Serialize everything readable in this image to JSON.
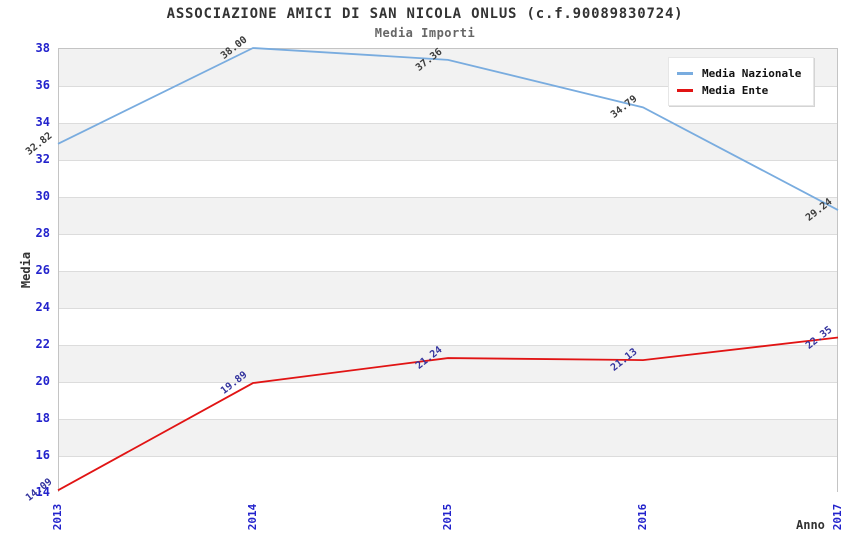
{
  "chart_data": {
    "type": "line",
    "title": "ASSOCIAZIONE AMICI DI SAN NICOLA ONLUS (c.f.90089830724)",
    "subtitle": "Media Importi",
    "xlabel": "Anno",
    "ylabel": "Media",
    "categories": [
      "2013",
      "2014",
      "2015",
      "2016",
      "2017"
    ],
    "series": [
      {
        "name": "Media Nazionale",
        "color": "#79ACDF",
        "label_color": "#3C3C3C",
        "values": [
          32.82,
          38.0,
          37.36,
          34.79,
          29.24
        ]
      },
      {
        "name": "Media Ente",
        "color": "#E11414",
        "label_color": "#34349E",
        "values": [
          14.09,
          19.89,
          21.24,
          21.13,
          22.35
        ]
      }
    ],
    "ylim": [
      14,
      38
    ],
    "ytick_step": 2,
    "grid": "horizontal-bands",
    "band_colors": [
      "#F2F2F2",
      "#FFFFFF"
    ],
    "gridline_color": "#DCDCDC",
    "tick_label_color": "#2323CC",
    "legend_position": "top-right"
  }
}
